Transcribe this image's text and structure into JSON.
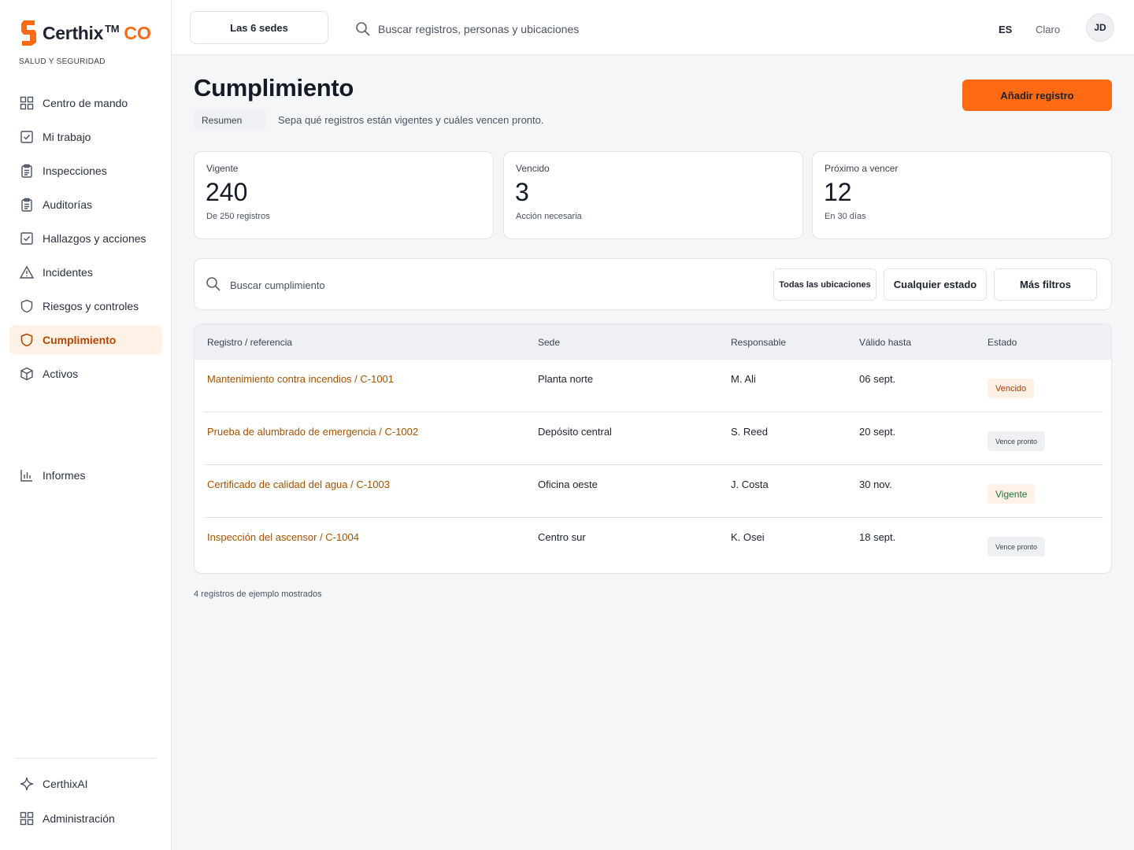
{
  "brand": {
    "name": "Certhix",
    "tm": "TM",
    "country": "CO",
    "subtitle": "SALUD Y SEGURIDAD"
  },
  "sidebar": {
    "items": [
      {
        "label": "Centro de mando",
        "icon": "grid-icon"
      },
      {
        "label": "Mi trabajo",
        "icon": "checkbox-icon"
      },
      {
        "label": "Inspecciones",
        "icon": "clipboard-icon"
      },
      {
        "label": "Auditorías",
        "icon": "clipboard-icon"
      },
      {
        "label": "Hallazgos y acciones",
        "icon": "checkbox-icon"
      },
      {
        "label": "Incidentes",
        "icon": "warning-icon"
      },
      {
        "label": "Riesgos y controles",
        "icon": "shield-icon"
      },
      {
        "label": "Cumplimiento",
        "icon": "shield-icon",
        "active": true
      },
      {
        "label": "Activos",
        "icon": "cube-icon"
      },
      {
        "label": "Informes",
        "icon": "bar-chart-icon"
      }
    ],
    "bottom": [
      {
        "label": "CerthixAI",
        "icon": "sparkle-icon"
      },
      {
        "label": "Administración",
        "icon": "grid-icon"
      }
    ]
  },
  "topbar": {
    "site_selector": "Las 6 sedes",
    "search_placeholder": "Buscar registros, personas y ubicaciones",
    "language": "ES",
    "theme": "Claro",
    "user_initials": "JD"
  },
  "page": {
    "title": "Cumplimiento",
    "tab": "Resumen",
    "subtitle": "Sepa qué registros están vigentes y cuáles vencen pronto.",
    "add_button": "Añadir registro"
  },
  "stats": [
    {
      "label": "Vigente",
      "value": "240",
      "note": "De 250 registros"
    },
    {
      "label": "Vencido",
      "value": "3",
      "note": "Acción necesaria"
    },
    {
      "label": "Próximo a vencer",
      "value": "12",
      "note": "En 30 días"
    }
  ],
  "filters": {
    "search_placeholder": "Buscar cumplimiento",
    "locations": "Todas las ubicaciones",
    "status": "Cualquier estado",
    "more": "Más filtros"
  },
  "table": {
    "headers": [
      "Registro / referencia",
      "Sede",
      "Responsable",
      "Válido hasta",
      "Estado"
    ],
    "rows": [
      {
        "ref": "Mantenimiento contra incendios / C-1001",
        "site": "Planta norte",
        "owner": "M. Ali",
        "valid": "06 sept.",
        "status": "Vencido",
        "status_kind": "vencido"
      },
      {
        "ref": "Prueba de alumbrado de emergencia / C-1002",
        "site": "Depósito central",
        "owner": "S. Reed",
        "valid": "20 sept.",
        "status": "Vence pronto",
        "status_kind": "pronto"
      },
      {
        "ref": "Certificado de calidad del agua / C-1003",
        "site": "Oficina oeste",
        "owner": "J. Costa",
        "valid": "30 nov.",
        "status": "Vigente",
        "status_kind": "vigente"
      },
      {
        "ref": "Inspección del ascensor / C-1004",
        "site": "Centro sur",
        "owner": "K. Osei",
        "valid": "18 sept.",
        "status": "Vence pronto",
        "status_kind": "pronto"
      }
    ],
    "footnote": "4 registros de ejemplo mostrados"
  },
  "colors": {
    "accent": "#ff6a13",
    "active_bg": "#fff1e6",
    "link": "#a35200"
  }
}
